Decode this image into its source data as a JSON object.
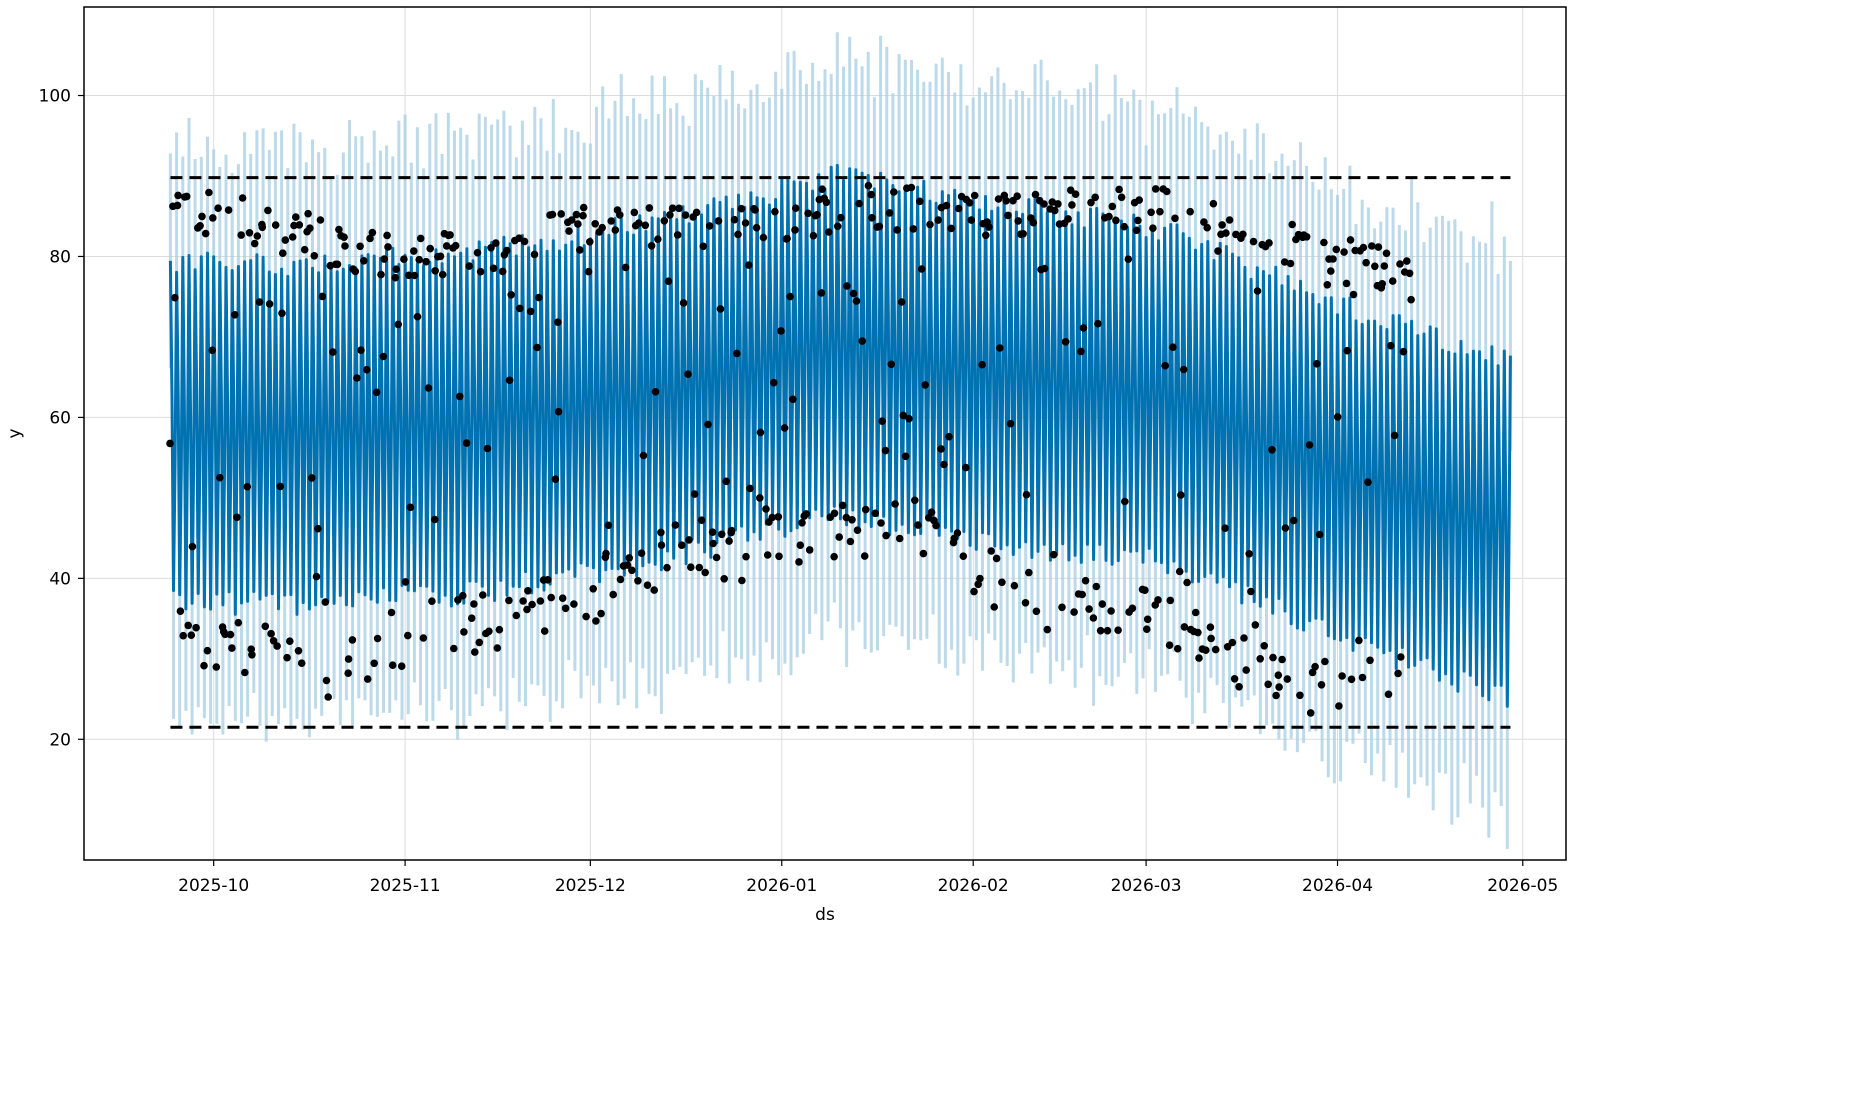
{
  "chart_data": {
    "type": "line",
    "title": "",
    "xlabel": "ds",
    "ylabel": "y",
    "x_range": [
      "2025-09-10",
      "2026-05-08"
    ],
    "ylim": [
      5,
      111
    ],
    "x_ticks": [
      "2025-10",
      "2025-11",
      "2025-12",
      "2026-01",
      "2026-02",
      "2026-03",
      "2026-04",
      "2026-05"
    ],
    "y_ticks": [
      "20",
      "40",
      "60",
      "80",
      "100"
    ],
    "y_tick_values": [
      20,
      40,
      60,
      80,
      100
    ],
    "grid": true,
    "colors": {
      "forecast_line": "#0072b2",
      "interval": "#a6cee3",
      "observations": "#000000",
      "cap_floor": "#000000",
      "grid": "#dddddd"
    },
    "forecast": {
      "start": "2025-09-24",
      "end": "2026-04-29",
      "cycle_days": 1,
      "upper_points": [
        [
          "2025-09-24",
          79
        ],
        [
          "2025-10-15",
          79
        ],
        [
          "2025-11-10",
          80
        ],
        [
          "2025-12-10",
          84
        ],
        [
          "2026-01-10",
          90
        ],
        [
          "2026-02-10",
          86
        ],
        [
          "2026-03-05",
          83
        ],
        [
          "2026-04-01",
          74
        ],
        [
          "2026-04-29",
          67
        ]
      ],
      "lower_points": [
        [
          "2025-09-24",
          37
        ],
        [
          "2025-10-15",
          37
        ],
        [
          "2025-11-10",
          38
        ],
        [
          "2025-12-10",
          42
        ],
        [
          "2026-01-10",
          48
        ],
        [
          "2026-02-10",
          44
        ],
        [
          "2026-03-05",
          42
        ],
        [
          "2026-04-01",
          33
        ],
        [
          "2026-04-29",
          25
        ]
      ],
      "interval_width": 14
    },
    "cap": {
      "value": 89.8,
      "start": "2025-09-24",
      "end": "2026-04-29"
    },
    "floor": {
      "value": 21.5,
      "start": "2025-09-24",
      "end": "2026-04-29"
    },
    "observations": {
      "start": "2025-09-24",
      "end": "2026-04-13",
      "high_points": [
        [
          "2025-09-24",
          88
        ],
        [
          "2025-09-30",
          85
        ],
        [
          "2025-10-08",
          84
        ],
        [
          "2025-10-15",
          83
        ],
        [
          "2025-10-25",
          80
        ],
        [
          "2025-11-10",
          80
        ],
        [
          "2025-11-25",
          83
        ],
        [
          "2025-12-20",
          84
        ],
        [
          "2026-01-15",
          86
        ],
        [
          "2026-02-05",
          85
        ],
        [
          "2026-03-01",
          86
        ],
        [
          "2026-03-20",
          82
        ],
        [
          "2026-04-05",
          79
        ],
        [
          "2026-04-13",
          79
        ]
      ],
      "low_points": [
        [
          "2025-09-24",
          38
        ],
        [
          "2025-10-01",
          31
        ],
        [
          "2025-10-10",
          33
        ],
        [
          "2025-10-20",
          28
        ],
        [
          "2025-11-01",
          33
        ],
        [
          "2025-11-15",
          35
        ],
        [
          "2025-12-01",
          38
        ],
        [
          "2025-12-15",
          43
        ],
        [
          "2025-12-31",
          44
        ],
        [
          "2026-01-20",
          47
        ],
        [
          "2026-02-10",
          37
        ],
        [
          "2026-02-25",
          36
        ],
        [
          "2026-03-10",
          32
        ],
        [
          "2026-03-25",
          27
        ],
        [
          "2026-04-13",
          28
        ]
      ]
    }
  }
}
